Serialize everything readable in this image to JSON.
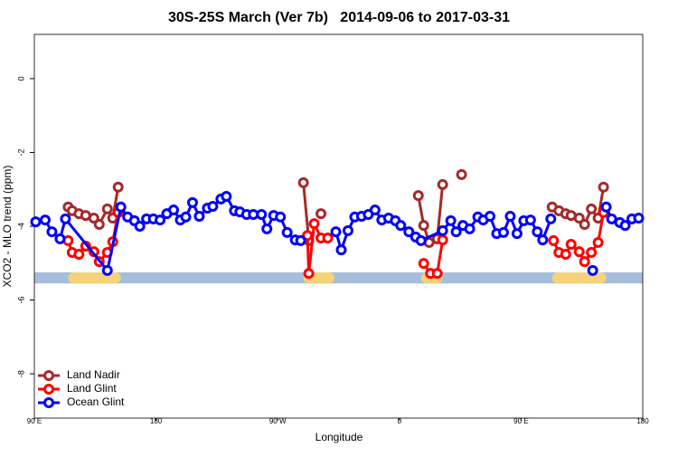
{
  "chart_data": {
    "type": "line",
    "title": "30S-25S March (Ver 7b)   2014-09-06 to 2017-03-31",
    "xlabel": "Longitude",
    "ylabel": "XCO2 - MLO trend (ppm)",
    "xlim": [
      90,
      540
    ],
    "ylim": [
      -9.2,
      1.2
    ],
    "xticks": [
      {
        "value": 90,
        "label": "90 E"
      },
      {
        "value": 180,
        "label": "180"
      },
      {
        "value": 270,
        "label": "90 W"
      },
      {
        "value": 360,
        "label": "0"
      },
      {
        "value": 450,
        "label": "90 E"
      },
      {
        "value": 540,
        "label": "180"
      }
    ],
    "yticks": [
      0,
      -2,
      -4,
      -6,
      -8
    ],
    "legend": "bottom-left",
    "surface_bar": {
      "ylim": [
        -5.55,
        -5.25
      ],
      "ocean_color": "#a6bddb",
      "land_color": "#f5d37a",
      "land_ranges": [
        [
          115,
          154
        ],
        [
          289,
          312
        ],
        [
          376,
          392
        ],
        [
          473,
          513
        ]
      ]
    },
    "series": [
      {
        "name": "Land Nadir",
        "color": "#a52a2a",
        "x": [
          115,
          118,
          123,
          128,
          134,
          138,
          144,
          148,
          152,
          220,
          289,
          293,
          298,
          302,
          340,
          374,
          378,
          382,
          388,
          392,
          400,
          406,
          440,
          473,
          478,
          483,
          487,
          493,
          497,
          502,
          507,
          511
        ],
        "values": [
          -3.48,
          -3.58,
          -3.66,
          -3.71,
          -3.78,
          -3.95,
          -3.53,
          -3.78,
          -2.94,
          null,
          -2.82,
          -4.39,
          null,
          -3.66,
          null,
          -3.17,
          -3.98,
          -4.44,
          -4.34,
          -2.87,
          null,
          -2.6,
          null,
          -3.48,
          -3.58,
          -3.66,
          -3.71,
          -3.78,
          -3.95,
          -3.53,
          -3.78,
          -2.94
        ]
      },
      {
        "name": "Land Glint",
        "color": "#ff0000",
        "x": [
          115,
          118,
          123,
          128,
          134,
          138,
          144,
          148,
          152,
          220,
          292,
          293,
          297,
          302,
          307,
          340,
          378,
          383,
          388,
          392,
          440,
          474,
          478,
          483,
          487,
          493,
          497,
          502,
          507,
          511
        ],
        "values": [
          -4.39,
          -4.71,
          -4.76,
          -4.54,
          -4.69,
          -4.96,
          -4.71,
          -4.42,
          -3.63,
          null,
          -4.25,
          -5.28,
          -3.93,
          -4.32,
          -4.32,
          null,
          -5.01,
          -5.28,
          -5.28,
          -4.37,
          null,
          -4.39,
          -4.71,
          -4.76,
          -4.49,
          -4.69,
          -4.96,
          -4.71,
          -4.44,
          -3.63
        ]
      },
      {
        "name": "Ocean Glint",
        "color": "#0000ff",
        "x": [
          91,
          98,
          103,
          109,
          113,
          144,
          154,
          159,
          164,
          168,
          173,
          178,
          183,
          188,
          193,
          198,
          202,
          207,
          212,
          218,
          222,
          228,
          232,
          238,
          242,
          247,
          252,
          258,
          262,
          267,
          272,
          277,
          283,
          287,
          300,
          313,
          317,
          322,
          327,
          332,
          337,
          342,
          347,
          352,
          357,
          361,
          367,
          372,
          376,
          392,
          398,
          402,
          407,
          412,
          418,
          422,
          427,
          432,
          437,
          442,
          447,
          452,
          457,
          462,
          466,
          472,
          490,
          503,
          508,
          513,
          517,
          523,
          527,
          532,
          537
        ],
        "values": [
          -3.88,
          -3.83,
          -4.15,
          -4.34,
          -3.8,
          -5.2,
          -3.48,
          -3.75,
          -3.85,
          -4.0,
          -3.8,
          -3.8,
          -3.83,
          -3.66,
          -3.56,
          -3.83,
          -3.75,
          -3.36,
          -3.73,
          -3.51,
          -3.46,
          -3.26,
          -3.19,
          -3.58,
          -3.61,
          -3.68,
          -3.68,
          -3.68,
          -4.07,
          -3.71,
          -3.75,
          -4.17,
          -4.37,
          -4.39,
          null,
          -4.15,
          -4.64,
          -4.12,
          -3.75,
          -3.73,
          -3.68,
          -3.56,
          -3.83,
          -3.78,
          -3.85,
          -3.98,
          -4.15,
          -4.29,
          -4.39,
          -4.12,
          -3.85,
          -4.15,
          -3.98,
          -4.07,
          -3.75,
          -3.83,
          -3.73,
          -4.2,
          -4.17,
          -3.73,
          -4.2,
          -3.85,
          -3.83,
          -4.15,
          -4.37,
          -3.8,
          null,
          -5.2,
          null,
          -3.48,
          -3.8,
          -3.9,
          -3.98,
          -3.8,
          -3.78
        ]
      }
    ]
  }
}
